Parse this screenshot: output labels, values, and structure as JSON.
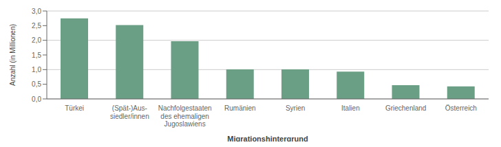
{
  "chart_data": {
    "type": "bar",
    "categories": [
      "Türkei",
      "(Spät-)Aus-\nsiedler/innen",
      "Nachfolgestaaten\ndes ehemaligen\nJugoslawiens",
      "Rumänien",
      "Syrien",
      "Italien",
      "Griechenland",
      "Österreich"
    ],
    "values": [
      2.75,
      2.52,
      1.97,
      1.01,
      1.01,
      0.93,
      0.47,
      0.43
    ],
    "color": "#6a9f85",
    "ylabel": "Anzahl (in Millionen)",
    "xlabel": "Migrationshintergrund",
    "ylim": [
      0,
      3.0
    ],
    "yticks": [
      {
        "value": 0.0,
        "label": "0,0"
      },
      {
        "value": 0.5,
        "label": "0,5"
      },
      {
        "value": 1.0,
        "label": "1,0"
      },
      {
        "value": 1.5,
        "label": "1,5"
      },
      {
        "value": 2.0,
        "label": "2,0"
      },
      {
        "value": 2.5,
        "label": "2,5"
      },
      {
        "value": 3.0,
        "label": "3,0"
      }
    ],
    "grid": true
  }
}
